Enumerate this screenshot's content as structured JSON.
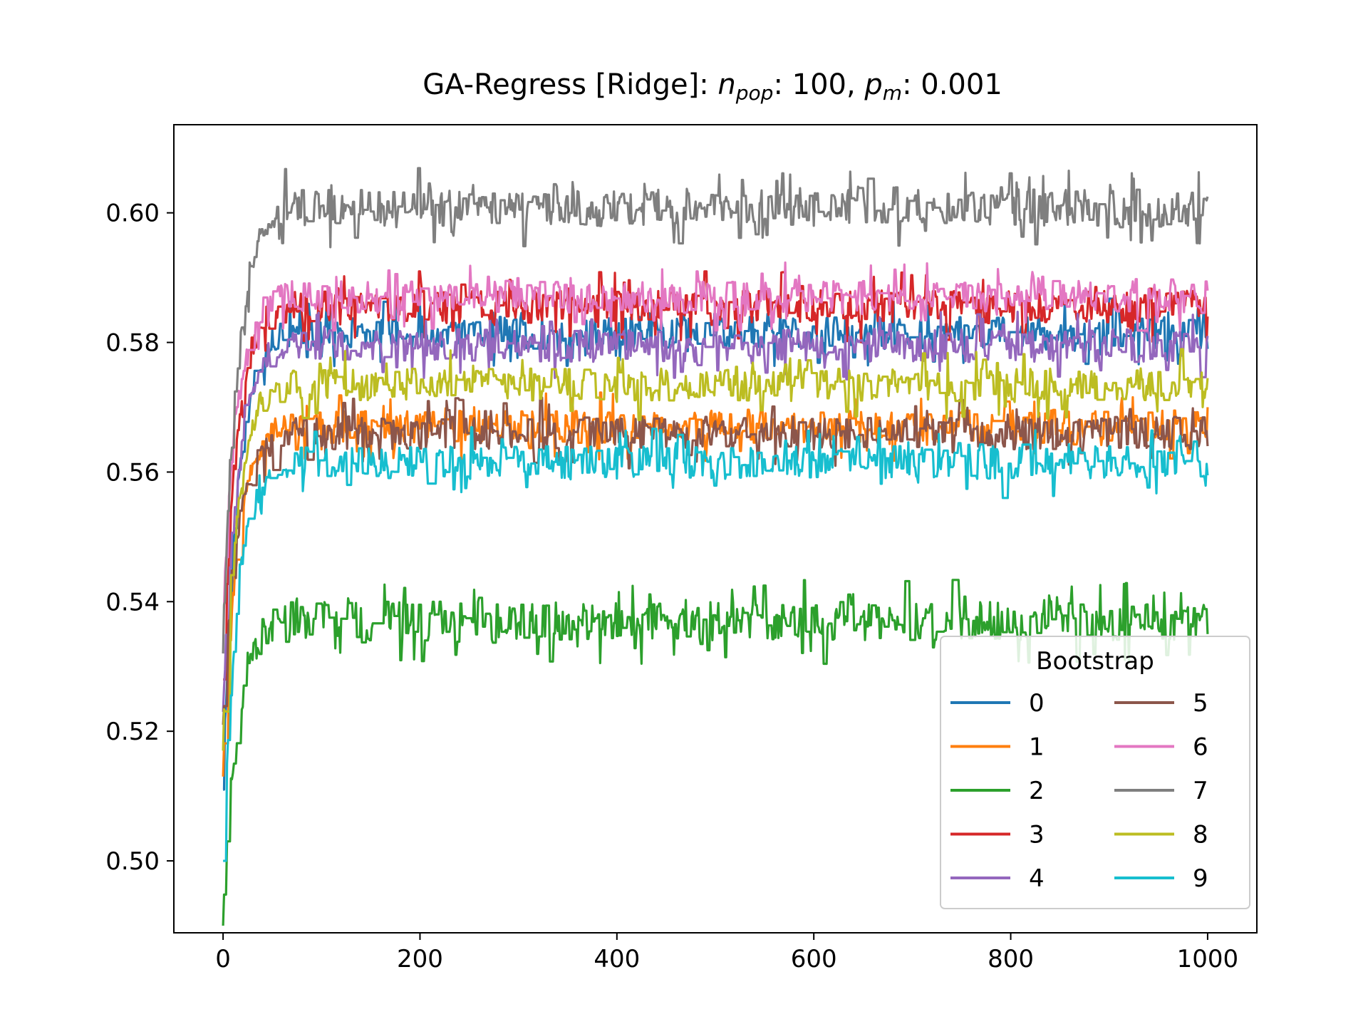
{
  "chart_data": {
    "type": "line",
    "title": {
      "prefix": "GA-Regress [Ridge]: ",
      "n_var": "n",
      "n_sub": "pop",
      "mid": ": 100, ",
      "p_var": "p",
      "p_sub": "m",
      "suffix": ": 0.001"
    },
    "xlabel": "",
    "ylabel": "",
    "xlim": [
      -50,
      1050
    ],
    "ylim": [
      0.4889,
      0.6136
    ],
    "x_ticks": [
      0,
      200,
      400,
      600,
      800,
      1000
    ],
    "x_tick_labels": [
      "0",
      "200",
      "400",
      "600",
      "800",
      "1000"
    ],
    "y_ticks": [
      0.5,
      0.52,
      0.54,
      0.56,
      0.58,
      0.6
    ],
    "y_tick_labels": [
      "0.50",
      "0.52",
      "0.54",
      "0.56",
      "0.58",
      "0.60"
    ],
    "grid": false,
    "x_range": [
      0,
      1000
    ],
    "n_points": 1001,
    "legend": {
      "title": "Bootstrap",
      "placement": "lower-right",
      "columns": 2
    },
    "series": [
      {
        "name": "0",
        "color": "#1f77b4",
        "start": 0.511,
        "plateau": 0.5815,
        "jitter": 0.0025,
        "seed": 11,
        "end": 0.579
      },
      {
        "name": "1",
        "color": "#ff7f0e",
        "start": 0.513,
        "plateau": 0.567,
        "jitter": 0.0025,
        "seed": 23,
        "end": 0.57
      },
      {
        "name": "2",
        "color": "#2ca02c",
        "start": 0.49,
        "plateau": 0.537,
        "jitter": 0.003,
        "seed": 37,
        "end": 0.535
      },
      {
        "name": "3",
        "color": "#d62728",
        "start": 0.528,
        "plateau": 0.5855,
        "jitter": 0.0025,
        "seed": 41,
        "end": 0.584
      },
      {
        "name": "4",
        "color": "#9467bd",
        "start": 0.523,
        "plateau": 0.5795,
        "jitter": 0.0025,
        "seed": 53,
        "end": 0.581
      },
      {
        "name": "5",
        "color": "#8c564b",
        "start": 0.521,
        "plateau": 0.566,
        "jitter": 0.0025,
        "seed": 67,
        "end": 0.564
      },
      {
        "name": "6",
        "color": "#e377c2",
        "start": 0.539,
        "plateau": 0.587,
        "jitter": 0.0025,
        "seed": 71,
        "end": 0.588
      },
      {
        "name": "7",
        "color": "#7f7f7f",
        "start": 0.532,
        "plateau": 0.6008,
        "jitter": 0.0028,
        "seed": 83,
        "end": 0.6025
      },
      {
        "name": "8",
        "color": "#bcbd22",
        "start": 0.517,
        "plateau": 0.5735,
        "jitter": 0.0025,
        "seed": 97,
        "end": 0.5745
      },
      {
        "name": "9",
        "color": "#17becf",
        "start": 0.5,
        "plateau": 0.5615,
        "jitter": 0.0025,
        "seed": 101,
        "end": 0.5595
      }
    ]
  }
}
